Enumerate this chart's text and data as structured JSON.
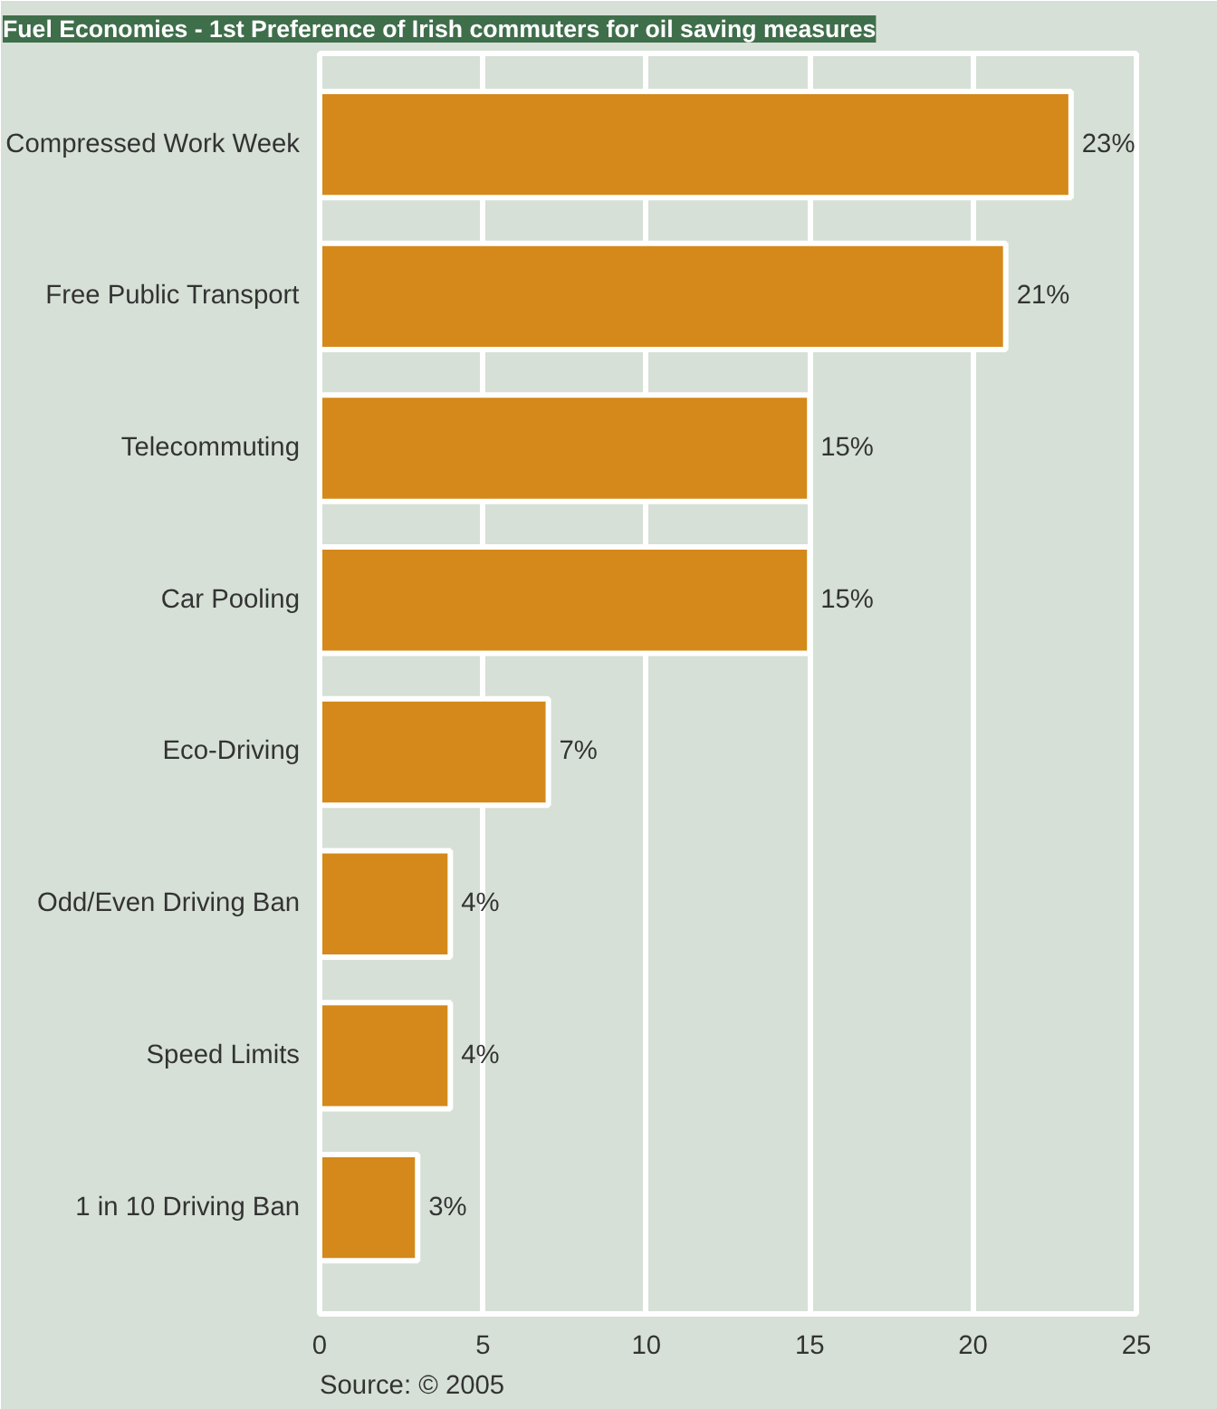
{
  "chart_data": {
    "type": "bar",
    "orientation": "horizontal",
    "title": "Fuel Economies - 1st Preference of Irish commuters for oil saving measures",
    "categories": [
      "Compressed Work Week",
      "Free Public Transport",
      "Telecommuting",
      "Car Pooling",
      "Eco-Driving",
      "Odd/Even Driving Ban",
      "Speed Limits",
      "1 in 10 Driving Ban"
    ],
    "values": [
      23,
      21,
      15,
      15,
      7,
      4,
      4,
      3
    ],
    "value_labels": [
      "23%",
      "21%",
      "15%",
      "15%",
      "7%",
      "4%",
      "4%",
      "3%"
    ],
    "color": "#d4891a",
    "xlim": [
      0,
      25
    ],
    "xticks": [
      0,
      5,
      10,
      15,
      20,
      25
    ],
    "grid": "x",
    "annotations": [
      "Source: © 2005"
    ]
  }
}
